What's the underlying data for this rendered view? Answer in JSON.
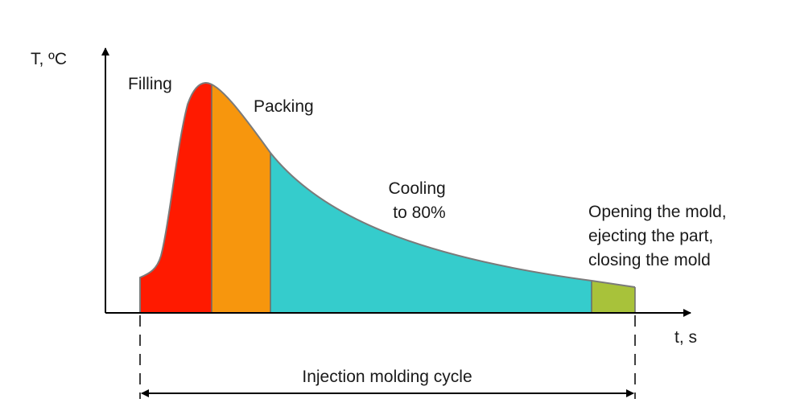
{
  "axes": {
    "y_label": "T, ºC",
    "x_label": "t, s"
  },
  "phases": [
    {
      "id": "filling",
      "label_lines": [
        "Filling"
      ],
      "color": "#ff1a00"
    },
    {
      "id": "packing",
      "label_lines": [
        "Packing"
      ],
      "color": "#f7960d"
    },
    {
      "id": "cooling",
      "label_lines": [
        "Cooling",
        "to 80%"
      ],
      "color": "#35cccc"
    },
    {
      "id": "opening",
      "label_lines": [
        "Opening the mold,",
        "ejecting the part,",
        "closing the mold"
      ],
      "color": "#a8c23a"
    }
  ],
  "cycle": {
    "label": "Injection molding cycle"
  },
  "colors": {
    "curve": "#7a7a7a",
    "axis": "#000000"
  }
}
